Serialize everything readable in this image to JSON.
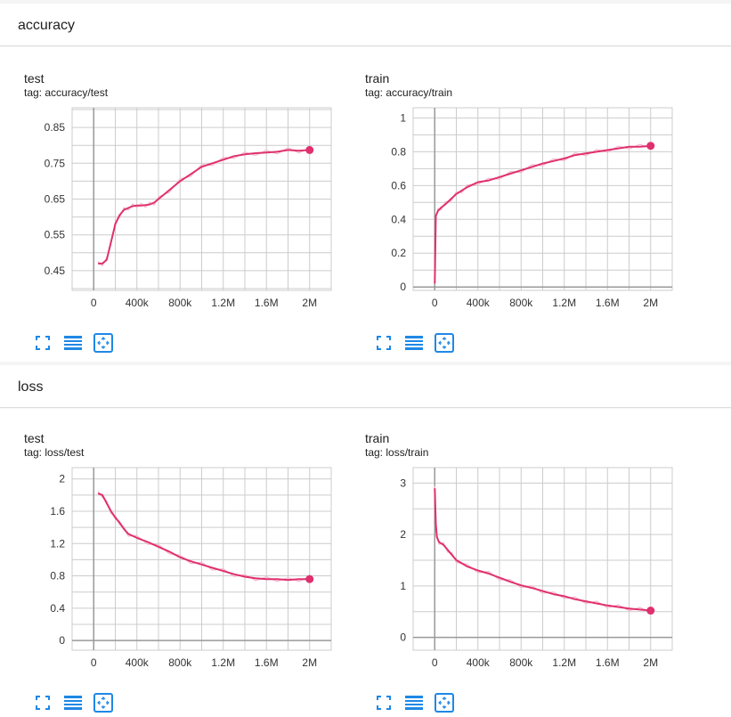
{
  "colors": {
    "accent": "#e0306e",
    "raw": "#f4b8cd",
    "grid": "#cccccc",
    "axis": "#999999",
    "button": "#1e88e5"
  },
  "sections": [
    {
      "title": "accuracy",
      "cards": [
        {
          "title": "test",
          "tag": "tag: accuracy/test"
        },
        {
          "title": "train",
          "tag": "tag: accuracy/train"
        }
      ]
    },
    {
      "title": "loss",
      "cards": [
        {
          "title": "test",
          "tag": "tag: loss/test"
        },
        {
          "title": "train",
          "tag": "tag: loss/train"
        }
      ]
    }
  ],
  "buttons": {
    "icons": [
      "fit-to-screen-icon",
      "toggle-log-scale-icon",
      "fit-domain-icon"
    ]
  },
  "chart_data": [
    {
      "type": "line",
      "title": "test",
      "xlabel": "",
      "ylabel": "",
      "x_ticks": [
        "0",
        "400k",
        "800k",
        "1.2M",
        "1.6M",
        "2M"
      ],
      "y_ticks": [
        "0.45",
        "0.55",
        "0.65",
        "0.75",
        "0.85"
      ],
      "xlim": [
        -200000,
        2200000
      ],
      "ylim": [
        0.395,
        0.905
      ],
      "series": [
        {
          "x": [
            40000,
            80000,
            120000,
            160000,
            200000,
            240000,
            280000,
            320000,
            360000,
            400000,
            440000,
            480000,
            520000,
            560000,
            600000,
            700000,
            800000,
            900000,
            1000000,
            1100000,
            1200000,
            1300000,
            1400000,
            1500000,
            1600000,
            1700000,
            1800000,
            1900000,
            2000000
          ],
          "y": [
            0.47,
            0.47,
            0.48,
            0.53,
            0.58,
            0.605,
            0.62,
            0.625,
            0.63,
            0.632,
            0.632,
            0.633,
            0.635,
            0.64,
            0.65,
            0.675,
            0.7,
            0.72,
            0.74,
            0.75,
            0.76,
            0.77,
            0.775,
            0.778,
            0.78,
            0.782,
            0.787,
            0.785,
            0.787
          ]
        }
      ]
    },
    {
      "type": "line",
      "title": "train",
      "xlabel": "",
      "ylabel": "",
      "x_ticks": [
        "0",
        "400k",
        "800k",
        "1.2M",
        "1.6M",
        "2M"
      ],
      "y_ticks": [
        "0",
        "0.2",
        "0.4",
        "0.6",
        "0.8",
        "1"
      ],
      "xlim": [
        -200000,
        2200000
      ],
      "ylim": [
        -0.02,
        1.06
      ],
      "series": [
        {
          "x": [
            0,
            10000,
            30000,
            60000,
            100000,
            150000,
            200000,
            250000,
            300000,
            400000,
            500000,
            600000,
            700000,
            800000,
            900000,
            1000000,
            1100000,
            1200000,
            1300000,
            1400000,
            1500000,
            1600000,
            1700000,
            1800000,
            1900000,
            2000000
          ],
          "y": [
            0.02,
            0.42,
            0.45,
            0.47,
            0.49,
            0.52,
            0.55,
            0.57,
            0.59,
            0.62,
            0.63,
            0.65,
            0.67,
            0.69,
            0.71,
            0.73,
            0.745,
            0.76,
            0.78,
            0.79,
            0.8,
            0.81,
            0.82,
            0.83,
            0.83,
            0.835
          ]
        }
      ]
    },
    {
      "type": "line",
      "title": "test",
      "xlabel": "",
      "ylabel": "",
      "x_ticks": [
        "0",
        "400k",
        "800k",
        "1.2M",
        "1.6M",
        "2M"
      ],
      "y_ticks": [
        "0",
        "0.4",
        "0.8",
        "1.2",
        "1.6",
        "2"
      ],
      "xlim": [
        -200000,
        2200000
      ],
      "ylim": [
        -0.12,
        2.14
      ],
      "series": [
        {
          "x": [
            40000,
            80000,
            120000,
            160000,
            200000,
            240000,
            280000,
            320000,
            400000,
            500000,
            600000,
            700000,
            800000,
            900000,
            1000000,
            1100000,
            1200000,
            1300000,
            1400000,
            1500000,
            1600000,
            1700000,
            1800000,
            1900000,
            2000000
          ],
          "y": [
            1.82,
            1.8,
            1.7,
            1.6,
            1.52,
            1.46,
            1.38,
            1.32,
            1.27,
            1.22,
            1.16,
            1.1,
            1.03,
            0.98,
            0.94,
            0.9,
            0.86,
            0.82,
            0.79,
            0.77,
            0.76,
            0.76,
            0.75,
            0.76,
            0.76
          ]
        }
      ]
    },
    {
      "type": "line",
      "title": "train",
      "xlabel": "",
      "ylabel": "",
      "x_ticks": [
        "0",
        "400k",
        "800k",
        "1.2M",
        "1.6M",
        "2M"
      ],
      "y_ticks": [
        "0",
        "1",
        "2",
        "3"
      ],
      "xlim": [
        -200000,
        2200000
      ],
      "ylim": [
        -0.25,
        3.3
      ],
      "series": [
        {
          "x": [
            0,
            10000,
            20000,
            40000,
            80000,
            120000,
            160000,
            200000,
            300000,
            400000,
            500000,
            600000,
            700000,
            800000,
            900000,
            1000000,
            1100000,
            1200000,
            1300000,
            1400000,
            1500000,
            1600000,
            1700000,
            1800000,
            1900000,
            2000000
          ],
          "y": [
            2.9,
            2.2,
            1.95,
            1.85,
            1.8,
            1.7,
            1.6,
            1.5,
            1.38,
            1.3,
            1.24,
            1.16,
            1.08,
            1.01,
            0.96,
            0.9,
            0.84,
            0.8,
            0.74,
            0.7,
            0.66,
            0.62,
            0.59,
            0.56,
            0.54,
            0.52
          ]
        }
      ]
    }
  ]
}
